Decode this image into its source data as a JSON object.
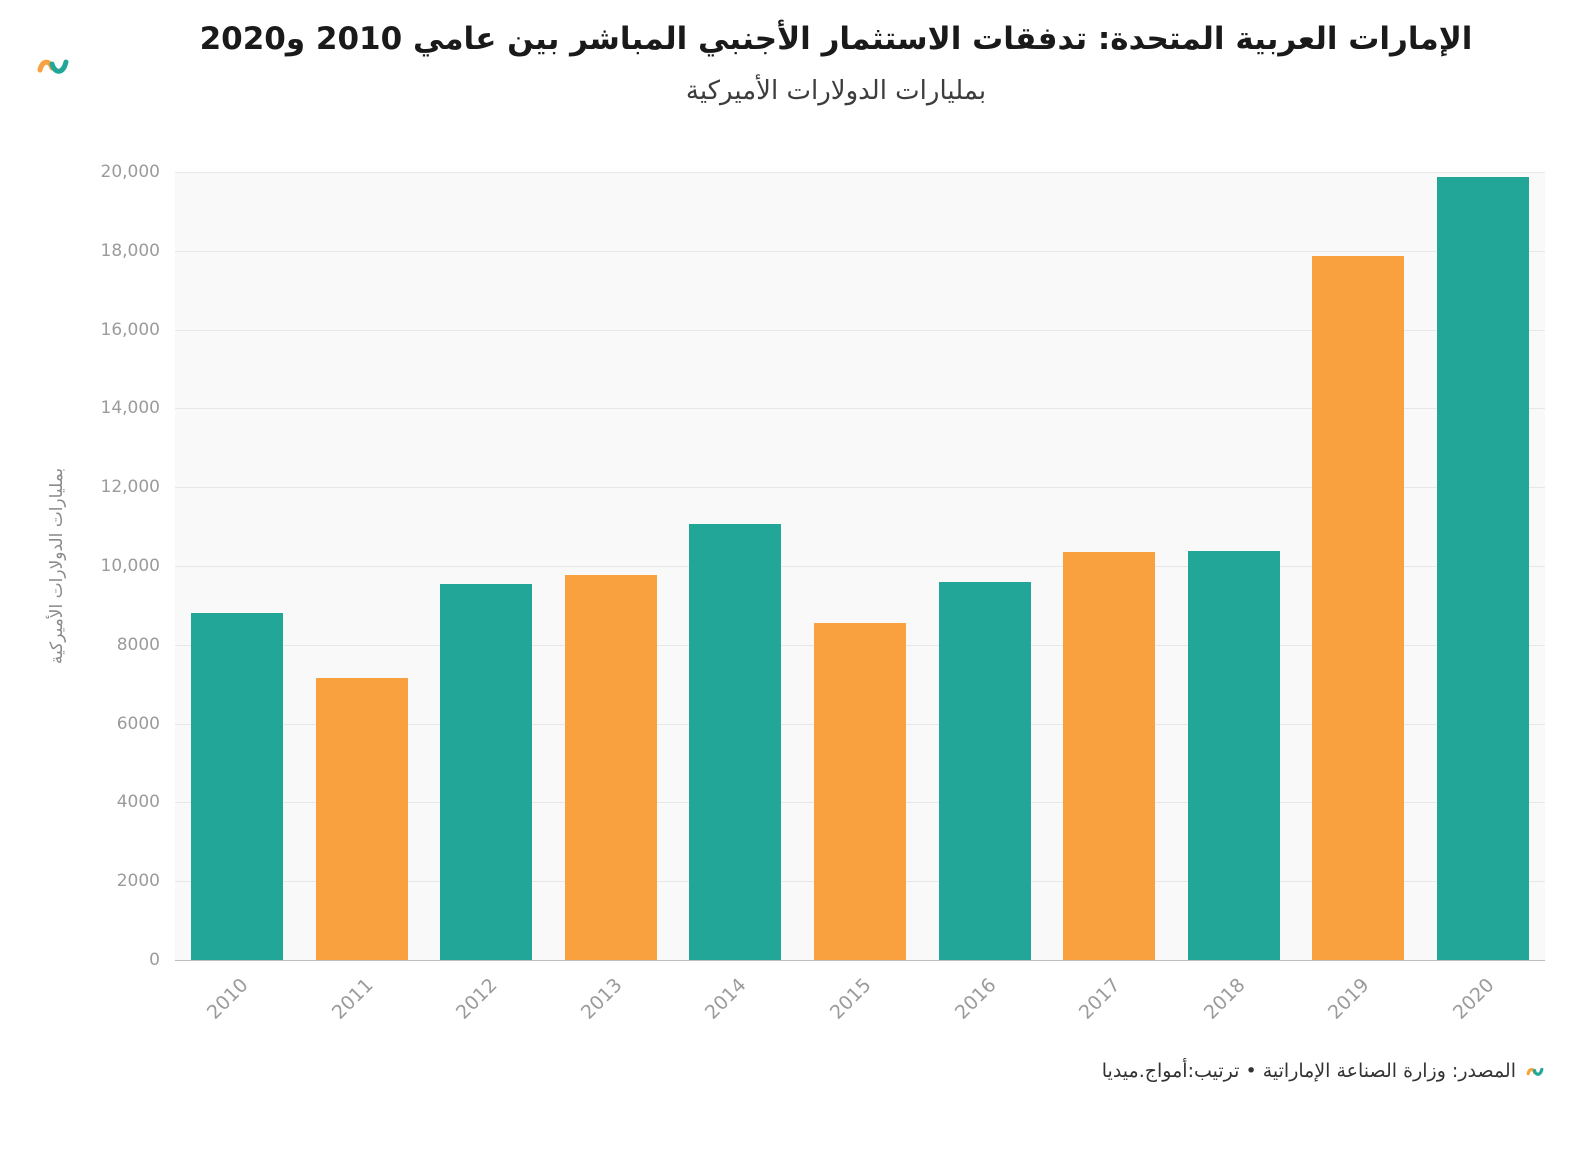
{
  "header": {
    "title": "الإمارات العربية المتحدة: تدفقات الاستثمار الأجنبي المباشر بين عامي 2010 و2020",
    "subtitle": "بمليارات الدولارات الأميركية"
  },
  "chart_data": {
    "type": "bar",
    "title": "الإمارات العربية المتحدة: تدفقات الاستثمار الأجنبي المباشر بين عامي 2010 و2020",
    "subtitle": "بمليارات الدولارات الأميركية",
    "ylabel": "بمليارات الدولارات الأميركية",
    "xlabel": "",
    "categories": [
      "2010",
      "2011",
      "2012",
      "2013",
      "2014",
      "2015",
      "2016",
      "2017",
      "2018",
      "2019",
      "2020"
    ],
    "values": [
      8797,
      7152,
      9547,
      9765,
      11072,
      8551,
      9605,
      10354,
      10385,
      17875,
      19884
    ],
    "ylim": [
      0,
      20000
    ],
    "ytick_labels": [
      "0",
      "2000",
      "4000",
      "6000",
      "8000",
      "10,000",
      "12,000",
      "14,000",
      "16,000",
      "18,000",
      "20,000"
    ],
    "grid": "horizontal",
    "legend": "none",
    "colors": {
      "teal": "#21A698",
      "orange": "#F9A03F"
    },
    "color_pattern": [
      "teal",
      "orange",
      "teal",
      "orange",
      "teal",
      "orange",
      "teal",
      "orange",
      "teal",
      "orange",
      "teal"
    ]
  },
  "footer": {
    "source": "المصدر: وزارة الصناعة الإماراتية • ترتيب:أمواج.ميديا"
  }
}
